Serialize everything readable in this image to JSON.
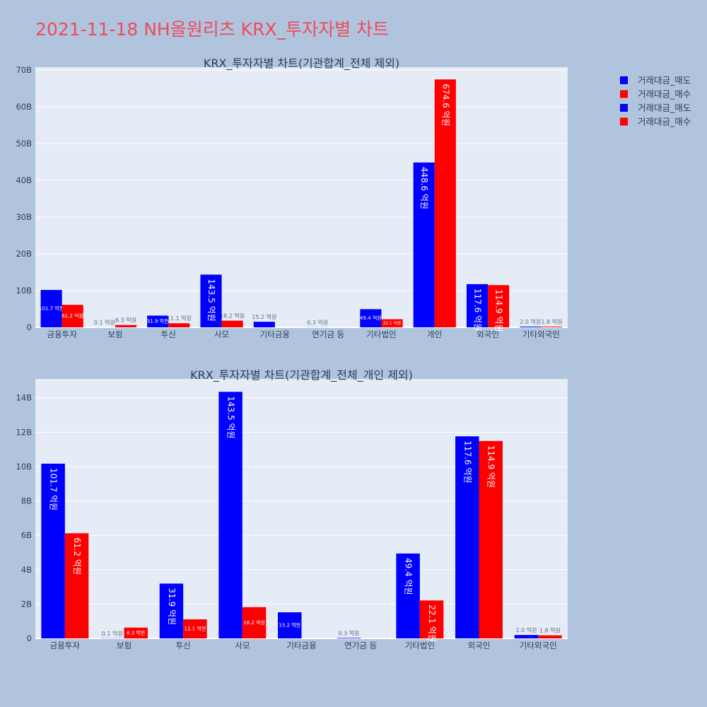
{
  "page_title": "2021-11-18 NH올원리츠 KRX_투자자별 차트",
  "colors": {
    "sell": "#0000ff",
    "buy": "#ff0000",
    "plot_bg": "#e5ecf6",
    "page_bg": "#b0c4de",
    "title": "#ef4a5c"
  },
  "legend": [
    "거래대금_매도",
    "거래대금_매수",
    "거래대금_매도",
    "거래대금_매수"
  ],
  "chart_data": [
    {
      "type": "bar",
      "title": "KRX_투자자별 차트(기관합계_전체 제외)",
      "categories": [
        "금융투자",
        "보험",
        "투신",
        "사모",
        "기타금융",
        "연기금 등",
        "기타법인",
        "개인",
        "외국인",
        "기타외국인"
      ],
      "series": [
        {
          "name": "거래대금_매도",
          "color": "#0000ff",
          "values": [
            10170000000,
            10000000,
            3190000000,
            14350000000,
            1520000000,
            30000000,
            4940000000,
            44860000000,
            11760000000,
            200000000
          ],
          "labels": [
            "101.7 억원",
            "0.1 억원",
            "31.9 억원",
            "143.5 억원",
            "15.2 억원",
            "0.3 억원",
            "49.4 억원",
            "448.6 억원",
            "117.6 억원",
            "2.0 억원"
          ]
        },
        {
          "name": "거래대금_매수",
          "color": "#ff0000",
          "values": [
            6120000000,
            630000000,
            1110000000,
            1820000000,
            0,
            0,
            2210000000,
            67460000000,
            11490000000,
            180000000
          ],
          "labels": [
            "61.2 억원",
            "6.3 억원",
            "11.1 억원",
            "18.2 억원",
            "",
            "",
            "22.1 억원",
            "674.6 억원",
            "114.9 억원",
            "1.8 억원"
          ]
        }
      ],
      "yticks": [
        0,
        10000000000,
        20000000000,
        30000000000,
        40000000000,
        50000000000,
        60000000000,
        70000000000
      ],
      "ytick_labels": [
        "0",
        "10B",
        "20B",
        "30B",
        "40B",
        "50B",
        "60B",
        "70B"
      ],
      "ylim": [
        0,
        70800000000
      ]
    },
    {
      "type": "bar",
      "title": "KRX_투자자별 차트(기관합계_전체_개인 제외)",
      "categories": [
        "금융투자",
        "보험",
        "투신",
        "사모",
        "기타금융",
        "연기금 등",
        "기타법인",
        "외국인",
        "기타외국인"
      ],
      "series": [
        {
          "name": "거래대금_매도",
          "color": "#0000ff",
          "values": [
            10170000000,
            10000000,
            3190000000,
            14350000000,
            1520000000,
            30000000,
            4940000000,
            11760000000,
            200000000
          ],
          "labels": [
            "101.7 억원",
            "0.1 억원",
            "31.9 억원",
            "143.5 억원",
            "15.2 억원",
            "0.3 억원",
            "49.4 억원",
            "117.6 억원",
            "2.0 억원"
          ]
        },
        {
          "name": "거래대금_매수",
          "color": "#ff0000",
          "values": [
            6120000000,
            630000000,
            1110000000,
            1820000000,
            0,
            0,
            2210000000,
            11490000000,
            180000000
          ],
          "labels": [
            "61.2 억원",
            "6.3 억원",
            "11.1 억원",
            "18.2 억원",
            "",
            "",
            "22.1 억원",
            "114.9 억원",
            "1.8 억원"
          ]
        }
      ],
      "yticks": [
        0,
        2000000000,
        4000000000,
        6000000000,
        8000000000,
        10000000000,
        12000000000,
        14000000000
      ],
      "ytick_labels": [
        "0",
        "2B",
        "4B",
        "6B",
        "8B",
        "10B",
        "12B",
        "14B"
      ],
      "ylim": [
        0,
        15100000000
      ]
    }
  ]
}
